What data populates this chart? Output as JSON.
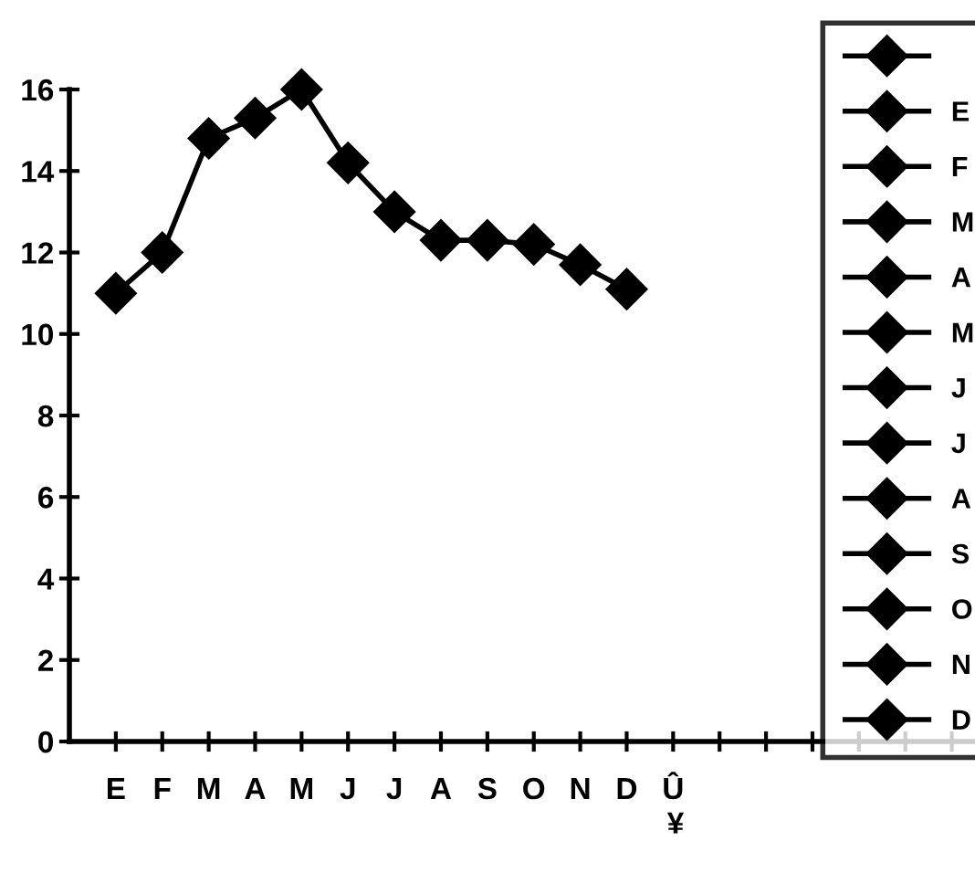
{
  "chart_data": {
    "type": "line",
    "categories": [
      "E",
      "F",
      "M",
      "A",
      "M",
      "J",
      "J",
      "A",
      "S",
      "O",
      "N",
      "D",
      "Û",
      null,
      null,
      null,
      null,
      null,
      null
    ],
    "series": [
      {
        "color": "#000000",
        "values": [
          11,
          12,
          14.8,
          15.3,
          16,
          14.2,
          13,
          12.3,
          12.3,
          12.2,
          11.7,
          11.1,
          null,
          null,
          null,
          null,
          null,
          null,
          null
        ]
      },
      {
        "name": "E",
        "color": "#000000",
        "values": [
          null,
          null,
          null,
          null,
          null,
          null,
          null,
          null,
          null,
          null,
          null,
          null,
          null,
          null,
          null,
          null,
          null,
          null,
          null
        ]
      },
      {
        "name": "F",
        "color": "#000000",
        "values": [
          null,
          null,
          null,
          null,
          null,
          null,
          null,
          null,
          null,
          null,
          null,
          null,
          null,
          null,
          null,
          null,
          null,
          null,
          null
        ]
      },
      {
        "name": "M",
        "color": "#000000",
        "values": [
          null,
          null,
          null,
          null,
          null,
          null,
          null,
          null,
          null,
          null,
          null,
          null,
          null,
          null,
          null,
          null,
          null,
          null,
          null
        ]
      },
      {
        "name": "A",
        "color": "#000000",
        "values": [
          null,
          null,
          null,
          null,
          null,
          null,
          null,
          null,
          null,
          null,
          null,
          null,
          null,
          null,
          null,
          null,
          null,
          null,
          null
        ]
      },
      {
        "name": "M",
        "color": "#000000",
        "values": [
          null,
          null,
          null,
          null,
          null,
          null,
          null,
          null,
          null,
          null,
          null,
          null,
          null,
          null,
          null,
          null,
          null,
          null,
          null
        ]
      },
      {
        "name": "J",
        "color": "#000000",
        "values": [
          null,
          null,
          null,
          null,
          null,
          null,
          null,
          null,
          null,
          null,
          null,
          null,
          null,
          null,
          null,
          null,
          null,
          null,
          null
        ]
      },
      {
        "name": "J",
        "color": "#000000",
        "values": [
          null,
          null,
          null,
          null,
          null,
          null,
          null,
          null,
          null,
          null,
          null,
          null,
          null,
          null,
          null,
          null,
          null,
          null,
          null
        ]
      },
      {
        "name": "A",
        "color": "#000000",
        "values": [
          null,
          null,
          null,
          null,
          null,
          null,
          null,
          null,
          null,
          null,
          null,
          null,
          null,
          null,
          null,
          null,
          null,
          null,
          null
        ]
      },
      {
        "name": "S",
        "color": "#000000",
        "values": [
          null,
          null,
          null,
          null,
          null,
          null,
          null,
          null,
          null,
          null,
          null,
          null,
          null,
          null,
          null,
          null,
          null,
          null,
          null
        ]
      },
      {
        "name": "O",
        "color": "#000000",
        "values": [
          null,
          null,
          null,
          null,
          null,
          null,
          null,
          null,
          null,
          null,
          null,
          null,
          null,
          null,
          null,
          null,
          null,
          null,
          null
        ]
      },
      {
        "name": "N",
        "color": "#000000",
        "values": [
          null,
          null,
          null,
          null,
          null,
          null,
          null,
          null,
          null,
          null,
          null,
          null,
          null,
          null,
          null,
          null,
          null,
          null,
          null
        ]
      },
      {
        "name": "D",
        "color": "#000000",
        "values": [
          null,
          null,
          null,
          null,
          null,
          null,
          null,
          null,
          null,
          null,
          null,
          null,
          null,
          null,
          null,
          null,
          null,
          null,
          null
        ]
      }
    ],
    "ylim": [
      0,
      16
    ],
    "yticks": [
      0,
      2,
      4,
      6,
      8,
      10,
      12,
      14,
      16
    ],
    "annotations": [
      "¥"
    ],
    "marker": "diamond",
    "line_style": "solid",
    "grid": false,
    "legend": "top right"
  }
}
